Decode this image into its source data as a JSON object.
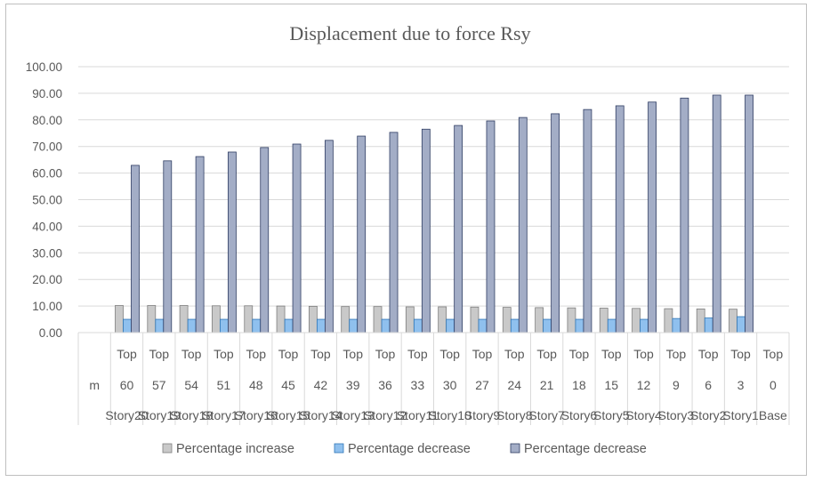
{
  "chart_data": {
    "type": "bar",
    "title": "Displacement due to force Rsy",
    "xlabel": "",
    "ylabel": "",
    "ylim": [
      0,
      100
    ],
    "yticks": [
      "0.00",
      "10.00",
      "20.00",
      "30.00",
      "40.00",
      "50.00",
      "60.00",
      "70.00",
      "80.00",
      "90.00",
      "100.00"
    ],
    "category_levels": {
      "level1": [
        "",
        "Top",
        "Top",
        "Top",
        "Top",
        "Top",
        "Top",
        "Top",
        "Top",
        "Top",
        "Top",
        "Top",
        "Top",
        "Top",
        "Top",
        "Top",
        "Top",
        "Top",
        "Top",
        "Top",
        "Top",
        "Top"
      ],
      "level2": [
        "m",
        "60",
        "57",
        "54",
        "51",
        "48",
        "45",
        "42",
        "39",
        "36",
        "33",
        "30",
        "27",
        "24",
        "21",
        "18",
        "15",
        "12",
        "9",
        "6",
        "3",
        "0"
      ],
      "level3": [
        "",
        "Story20",
        "Story19",
        "Story18",
        "Story17",
        "Story16",
        "Story15",
        "Story14",
        "Story13",
        "Story12",
        "Story11",
        "Story10",
        "Story9",
        "Story8",
        "Story7",
        "Story6",
        "Story5",
        "Story4",
        "Story3",
        "Story2",
        "Story1",
        "Base"
      ]
    },
    "series": [
      {
        "name": "Percentage increase",
        "color": "#c9c9c9",
        "values": [
          null,
          10.2,
          10.2,
          10.2,
          10.1,
          10.1,
          10.0,
          9.9,
          9.8,
          9.8,
          9.7,
          9.7,
          9.6,
          9.5,
          9.4,
          9.3,
          9.2,
          9.1,
          9.0,
          8.9,
          8.8,
          null
        ]
      },
      {
        "name": "Percentage decrease",
        "color": "#8fc0ee",
        "values": [
          null,
          5.0,
          5.0,
          5.0,
          5.0,
          5.0,
          5.0,
          5.0,
          5.0,
          5.0,
          5.0,
          5.0,
          5.0,
          5.0,
          5.0,
          5.0,
          5.0,
          5.0,
          5.3,
          5.5,
          6.0,
          null
        ]
      },
      {
        "name": "Percentage decrease",
        "color": "#a3adc6",
        "values": [
          null,
          62.9,
          64.6,
          66.2,
          67.9,
          69.6,
          70.9,
          72.3,
          73.9,
          75.3,
          76.5,
          77.9,
          79.6,
          80.9,
          82.3,
          83.9,
          85.3,
          86.7,
          88.2,
          89.3,
          89.3,
          null
        ]
      }
    ],
    "legend_position": "bottom"
  }
}
